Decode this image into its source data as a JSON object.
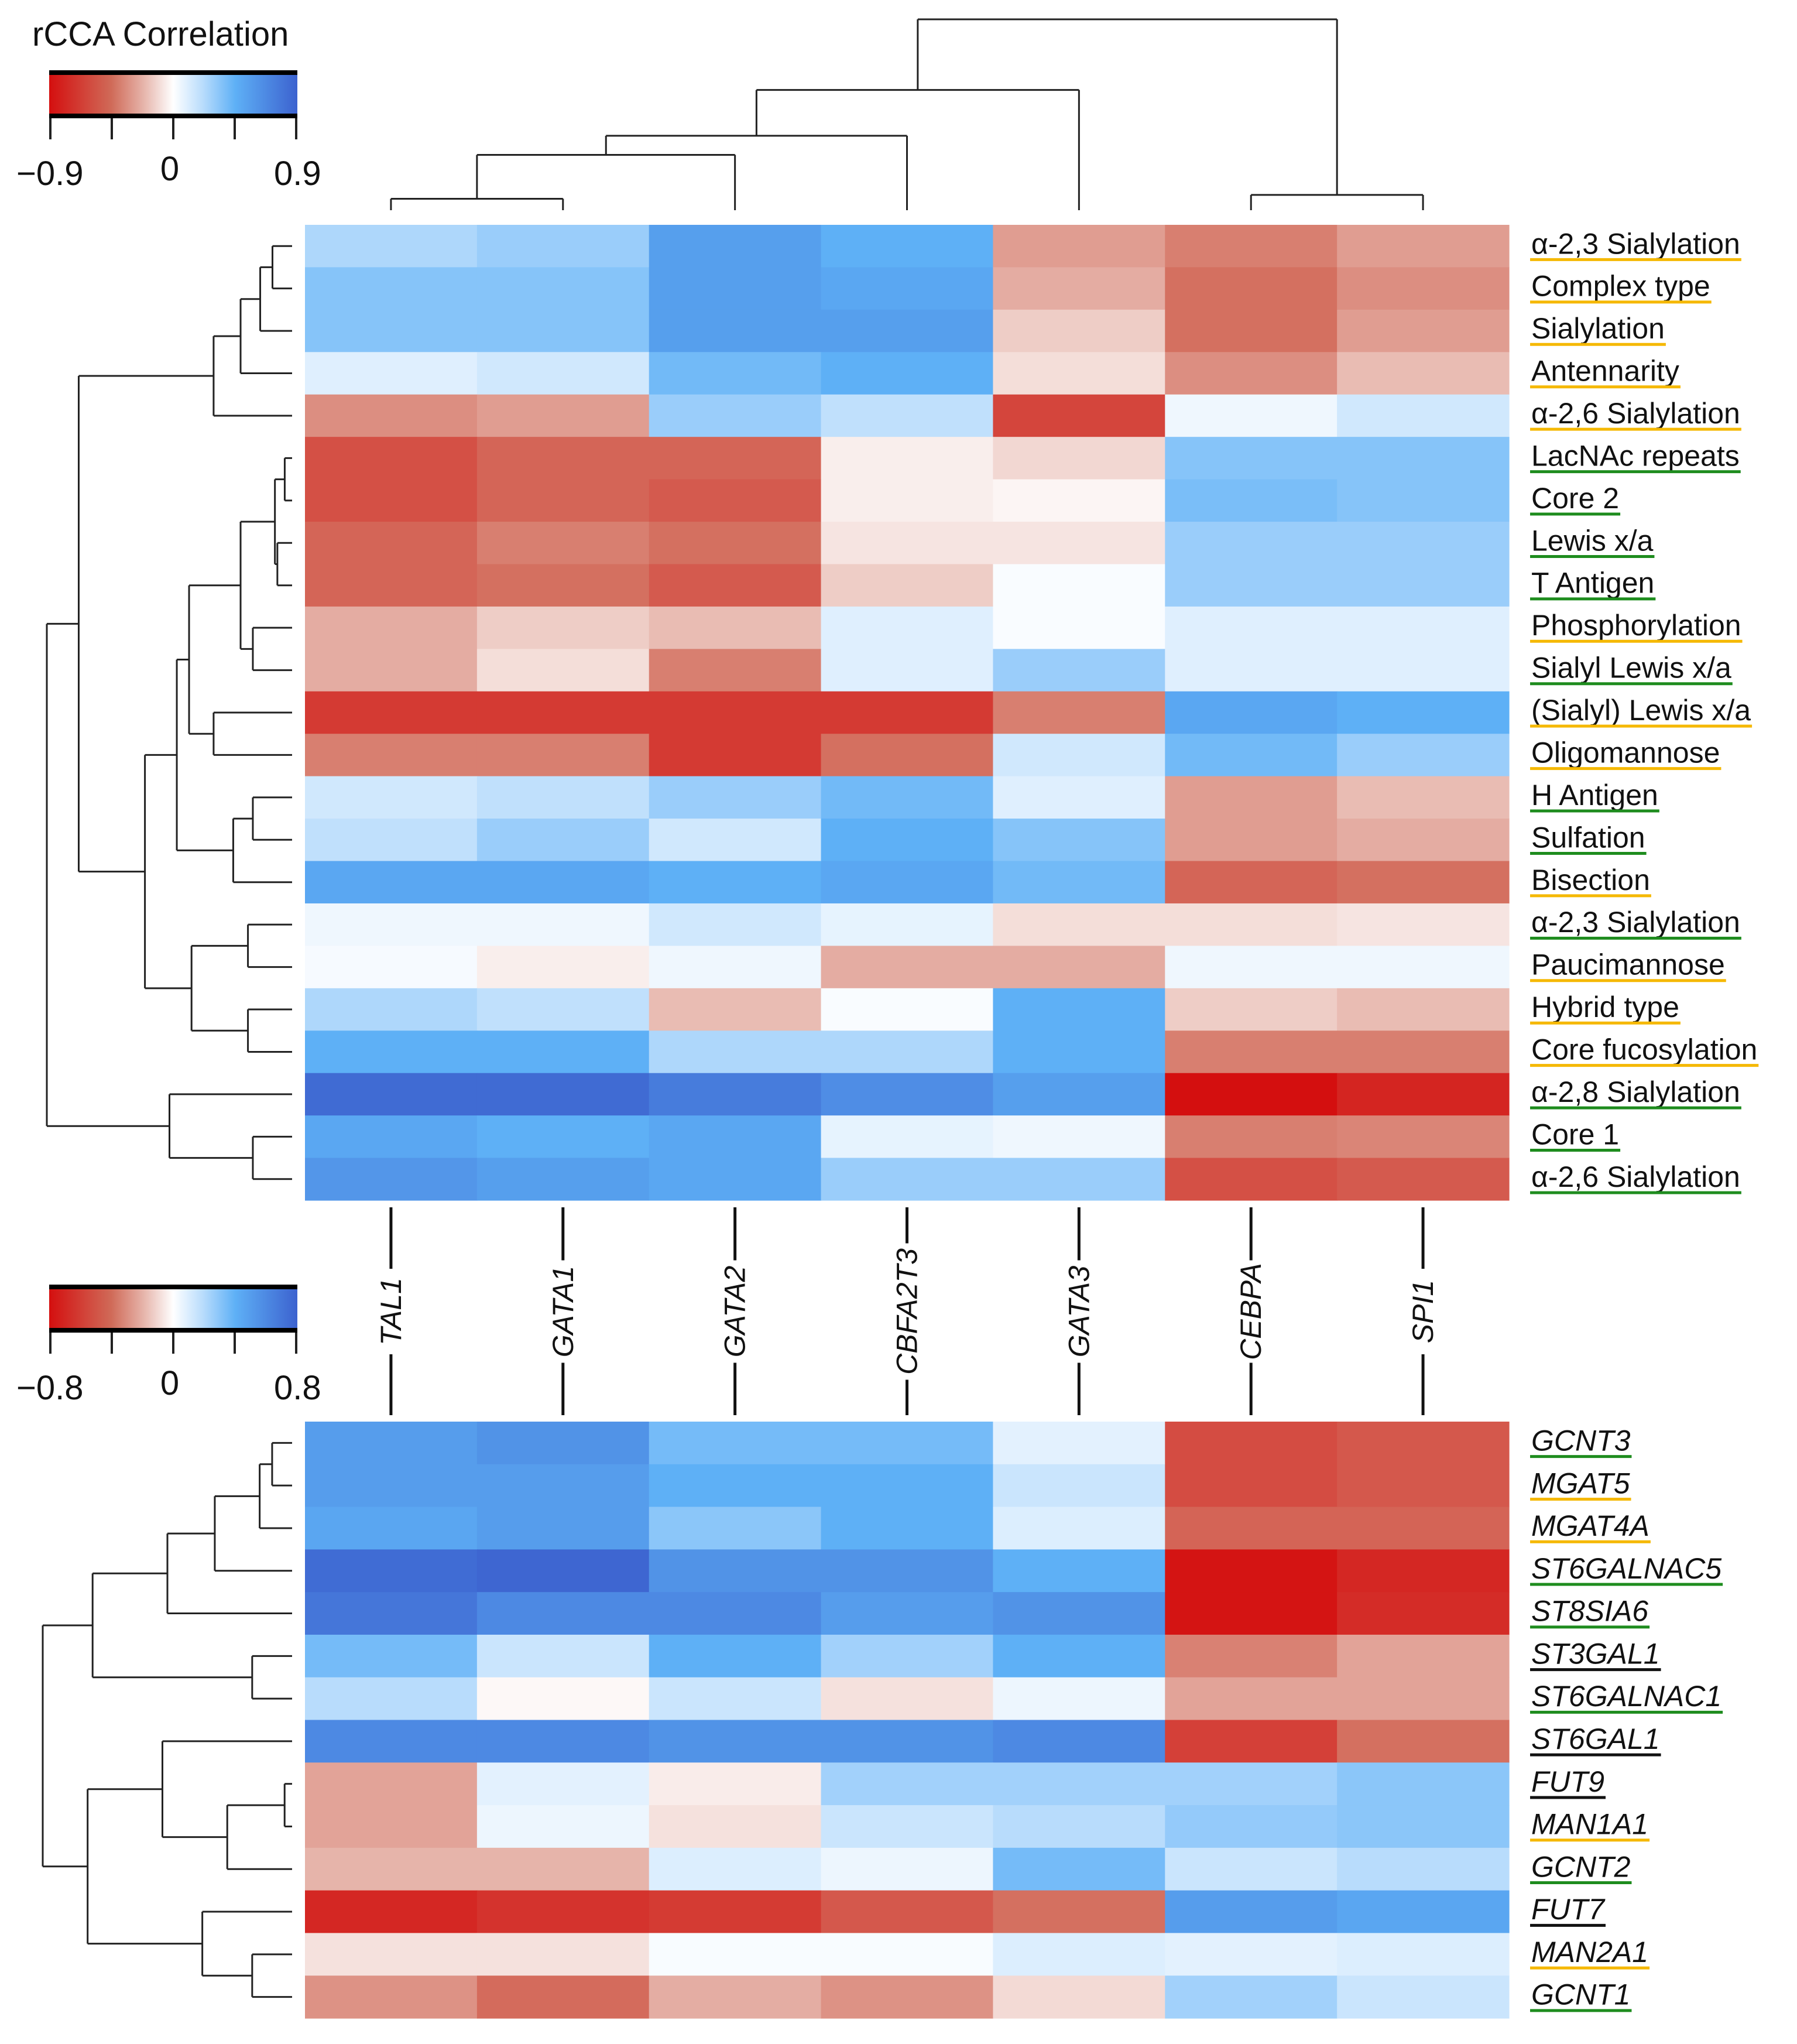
{
  "chart_data": [
    {
      "type": "heatmap",
      "title": "rCCA  Correlation",
      "legend": {
        "min_label": "−0.9",
        "mid_label": "0",
        "max_label": "0.9",
        "range": [
          -0.9,
          0.9
        ]
      },
      "columns": [
        "TAL1",
        "GATA1",
        "GATA2",
        "CBFA2T3",
        "GATA3",
        "CEBPA",
        "SPI1"
      ],
      "column_tree": {
        "h": 1,
        "c": [
          {
            "h": 0.63,
            "c": [
              {
                "h": 0.39,
                "c": [
                  {
                    "h": 0.29,
                    "c": [
                      {
                        "h": 0.06,
                        "c": [
                          0,
                          1
                        ]
                      },
                      2
                    ]
                  },
                  3
                ]
              },
              4
            ]
          },
          {
            "h": 0.08,
            "c": [
              5,
              6
            ]
          }
        ]
      },
      "rows": [
        {
          "label": "α-2,3 Sialylation",
          "group": "yellow"
        },
        {
          "label": "Complex type",
          "group": "yellow"
        },
        {
          "label": "Sialylation",
          "group": "yellow"
        },
        {
          "label": "Antennarity",
          "group": "yellow"
        },
        {
          "label": "α-2,6 Sialylation",
          "group": "yellow"
        },
        {
          "label": "LacNAc repeats",
          "group": "green"
        },
        {
          "label": "Core 2",
          "group": "green"
        },
        {
          "label": "Lewis x/a",
          "group": "green"
        },
        {
          "label": "T Antigen",
          "group": "green"
        },
        {
          "label": "Phosphorylation",
          "group": "yellow"
        },
        {
          "label": "Sialyl Lewis x/a",
          "group": "green"
        },
        {
          "label": "(Sialyl) Lewis x/a",
          "group": "yellow"
        },
        {
          "label": "Oligomannose",
          "group": "yellow"
        },
        {
          "label": "H Antigen",
          "group": "green"
        },
        {
          "label": "Sulfation",
          "group": "green"
        },
        {
          "label": "Bisection",
          "group": "yellow"
        },
        {
          "label": "α-2,3 Sialylation",
          "group": "green"
        },
        {
          "label": "Paucimannose",
          "group": "yellow"
        },
        {
          "label": "Hybrid type",
          "group": "yellow"
        },
        {
          "label": "Core fucosylation",
          "group": "yellow"
        },
        {
          "label": "α-2,8 Sialylation",
          "group": "green"
        },
        {
          "label": "Core 1",
          "group": "green"
        },
        {
          "label": "α-2,6 Sialylation",
          "group": "green"
        }
      ],
      "values": [
        [
          0.25,
          0.3,
          0.55,
          0.45,
          -0.3,
          -0.4,
          -0.3
        ],
        [
          0.35,
          0.35,
          0.55,
          0.5,
          -0.25,
          -0.45,
          -0.35
        ],
        [
          0.35,
          0.35,
          0.55,
          0.55,
          -0.15,
          -0.45,
          -0.3
        ],
        [
          0.1,
          0.15,
          0.4,
          0.45,
          -0.1,
          -0.35,
          -0.2
        ],
        [
          -0.35,
          -0.3,
          0.3,
          0.2,
          -0.65,
          0.05,
          0.15
        ],
        [
          -0.6,
          -0.5,
          -0.5,
          -0.05,
          -0.12,
          0.35,
          0.35
        ],
        [
          -0.6,
          -0.5,
          -0.55,
          -0.05,
          -0.03,
          0.38,
          0.35
        ],
        [
          -0.5,
          -0.4,
          -0.45,
          -0.08,
          -0.08,
          0.3,
          0.3
        ],
        [
          -0.5,
          -0.45,
          -0.55,
          -0.15,
          0.02,
          0.3,
          0.3
        ],
        [
          -0.25,
          -0.15,
          -0.2,
          0.1,
          0.02,
          0.1,
          0.1
        ],
        [
          -0.25,
          -0.1,
          -0.4,
          0.1,
          0.3,
          0.1,
          0.1
        ],
        [
          -0.7,
          -0.7,
          -0.7,
          -0.7,
          -0.4,
          0.5,
          0.45
        ],
        [
          -0.4,
          -0.4,
          -0.7,
          -0.45,
          0.15,
          0.4,
          0.3
        ],
        [
          0.15,
          0.2,
          0.3,
          0.4,
          0.1,
          -0.3,
          -0.2
        ],
        [
          0.2,
          0.3,
          0.15,
          0.45,
          0.35,
          -0.3,
          -0.25
        ],
        [
          0.5,
          0.5,
          0.45,
          0.5,
          0.4,
          -0.5,
          -0.45
        ],
        [
          0.05,
          0.05,
          0.15,
          0.08,
          -0.1,
          -0.1,
          -0.08
        ],
        [
          0.03,
          -0.05,
          0.05,
          -0.25,
          -0.25,
          0.05,
          0.05
        ],
        [
          0.25,
          0.2,
          -0.2,
          0.02,
          0.45,
          -0.15,
          -0.2
        ],
        [
          0.45,
          0.45,
          0.25,
          0.25,
          0.45,
          -0.4,
          -0.4
        ],
        [
          0.85,
          0.85,
          0.75,
          0.65,
          0.55,
          -0.9,
          -0.8
        ],
        [
          0.5,
          0.45,
          0.5,
          0.08,
          0.05,
          -0.4,
          -0.38
        ],
        [
          0.6,
          0.55,
          0.5,
          0.3,
          0.3,
          -0.6,
          -0.55
        ]
      ],
      "row_tree": {
        "h": 1,
        "c": [
          {
            "h": 0.87,
            "c": [
              {
                "h": 0.32,
                "c": [
                  {
                    "h": 0.21,
                    "c": [
                      {
                        "h": 0.13,
                        "c": [
                          {
                            "h": 0.08,
                            "c": [
                              0,
                              1
                            ]
                          },
                          2
                        ]
                      },
                      3
                    ]
                  },
                  4
                ]
              },
              {
                "h": 0.6,
                "c": [
                  {
                    "h": 0.47,
                    "c": [
                      {
                        "h": 0.42,
                        "c": [
                          {
                            "h": 0.21,
                            "c": [
                              {
                                "h": 0.07,
                                "c": [
                                  {
                                    "h": 0.03,
                                    "c": [
                                      5,
                                      6
                                    ]
                                  },
                                  {
                                    "h": 0.06,
                                    "c": [
                                      7,
                                      8
                                    ]
                                  }
                                ]
                              },
                              {
                                "h": 0.16,
                                "c": [
                                  9,
                                  10
                                ]
                              }
                            ]
                          },
                          {
                            "h": 0.32,
                            "c": [
                              11,
                              12
                            ]
                          }
                        ]
                      },
                      {
                        "h": 0.24,
                        "c": [
                          {
                            "h": 0.16,
                            "c": [
                              13,
                              14
                            ]
                          },
                          15
                        ]
                      }
                    ]
                  },
                  {
                    "h": 0.41,
                    "c": [
                      {
                        "h": 0.18,
                        "c": [
                          16,
                          17
                        ]
                      },
                      {
                        "h": 0.18,
                        "c": [
                          18,
                          19
                        ]
                      }
                    ]
                  }
                ]
              }
            ]
          },
          {
            "h": 0.5,
            "c": [
              20,
              {
                "h": 0.16,
                "c": [
                  21,
                  22
                ]
              }
            ]
          }
        ]
      }
    },
    {
      "type": "heatmap",
      "legend": {
        "min_label": "−0.8",
        "mid_label": "0",
        "max_label": "0.8",
        "range": [
          -0.8,
          0.8
        ]
      },
      "columns": [
        "TAL1",
        "GATA1",
        "GATA2",
        "CBFA2T3",
        "GATA3",
        "CEBPA",
        "SPI1"
      ],
      "rows": [
        {
          "label": "GCNT3",
          "group": "green"
        },
        {
          "label": "MGAT5",
          "group": "yellow"
        },
        {
          "label": "MGAT4A",
          "group": "yellow"
        },
        {
          "label": "ST6GALNAC5",
          "group": "green"
        },
        {
          "label": "ST8SIA6",
          "group": "green"
        },
        {
          "label": "ST3GAL1",
          "group": "black"
        },
        {
          "label": "ST6GALNAC1",
          "group": "green"
        },
        {
          "label": "ST6GAL1",
          "group": "black"
        },
        {
          "label": "FUT9",
          "group": "black"
        },
        {
          "label": "MAN1A1",
          "group": "yellow"
        },
        {
          "label": "GCNT2",
          "group": "green"
        },
        {
          "label": "FUT7",
          "group": "black"
        },
        {
          "label": "MAN2A1",
          "group": "yellow"
        },
        {
          "label": "GCNT1",
          "group": "green"
        }
      ],
      "values": [
        [
          0.5,
          0.55,
          0.35,
          0.35,
          0.08,
          -0.55,
          -0.5
        ],
        [
          0.5,
          0.5,
          0.4,
          0.4,
          0.15,
          -0.55,
          -0.5
        ],
        [
          0.45,
          0.5,
          0.3,
          0.4,
          0.1,
          -0.45,
          -0.45
        ],
        [
          0.75,
          0.78,
          0.55,
          0.55,
          0.4,
          -0.78,
          -0.7
        ],
        [
          0.7,
          0.6,
          0.6,
          0.5,
          0.55,
          -0.78,
          -0.68
        ],
        [
          0.35,
          0.15,
          0.4,
          0.25,
          0.4,
          -0.35,
          -0.25
        ],
        [
          0.2,
          -0.02,
          0.15,
          -0.08,
          0.05,
          -0.25,
          -0.25
        ],
        [
          0.6,
          0.6,
          0.55,
          0.55,
          0.6,
          -0.6,
          -0.4
        ],
        [
          -0.25,
          0.08,
          -0.05,
          0.25,
          0.25,
          0.25,
          0.3
        ],
        [
          -0.25,
          0.05,
          -0.08,
          0.15,
          0.2,
          0.28,
          0.3
        ],
        [
          -0.2,
          -0.2,
          0.1,
          0.05,
          0.35,
          0.15,
          0.2
        ],
        [
          -0.7,
          -0.65,
          -0.62,
          -0.5,
          -0.4,
          0.5,
          0.45
        ],
        [
          -0.08,
          -0.08,
          0.02,
          0.02,
          0.1,
          0.08,
          0.1
        ],
        [
          -0.3,
          -0.42,
          -0.22,
          -0.3,
          -0.1,
          0.25,
          0.15
        ]
      ],
      "row_tree": {
        "h": 1,
        "c": [
          {
            "h": 0.8,
            "c": [
              {
                "h": 0.5,
                "c": [
                  {
                    "h": 0.31,
                    "c": [
                      {
                        "h": 0.13,
                        "c": [
                          {
                            "h": 0.08,
                            "c": [
                              0,
                              1
                            ]
                          },
                          2
                        ]
                      },
                      3
                    ]
                  },
                  4
                ]
              },
              {
                "h": 0.16,
                "c": [
                  5,
                  6
                ]
              }
            ]
          },
          {
            "h": 0.82,
            "c": [
              {
                "h": 0.52,
                "c": [
                  7,
                  {
                    "h": 0.26,
                    "c": [
                      {
                        "h": 0.03,
                        "c": [
                          8,
                          9
                        ]
                      },
                      10
                    ]
                  }
                ]
              },
              {
                "h": 0.36,
                "c": [
                  11,
                  {
                    "h": 0.16,
                    "c": [
                      12,
                      13
                    ]
                  }
                ]
              }
            ]
          }
        ]
      }
    }
  ],
  "colors": {
    "neg": "#d40f0f",
    "neg_mid": "#d47060",
    "neg_light": "#e6b4aa",
    "zero": "#ffffff",
    "pos_light": "#b8dcfc",
    "pos_mid": "#5eb0f6",
    "pos": "#3c62cf",
    "green": "#1e8c1e",
    "yellow": "#f5b800",
    "black": "#111111"
  }
}
